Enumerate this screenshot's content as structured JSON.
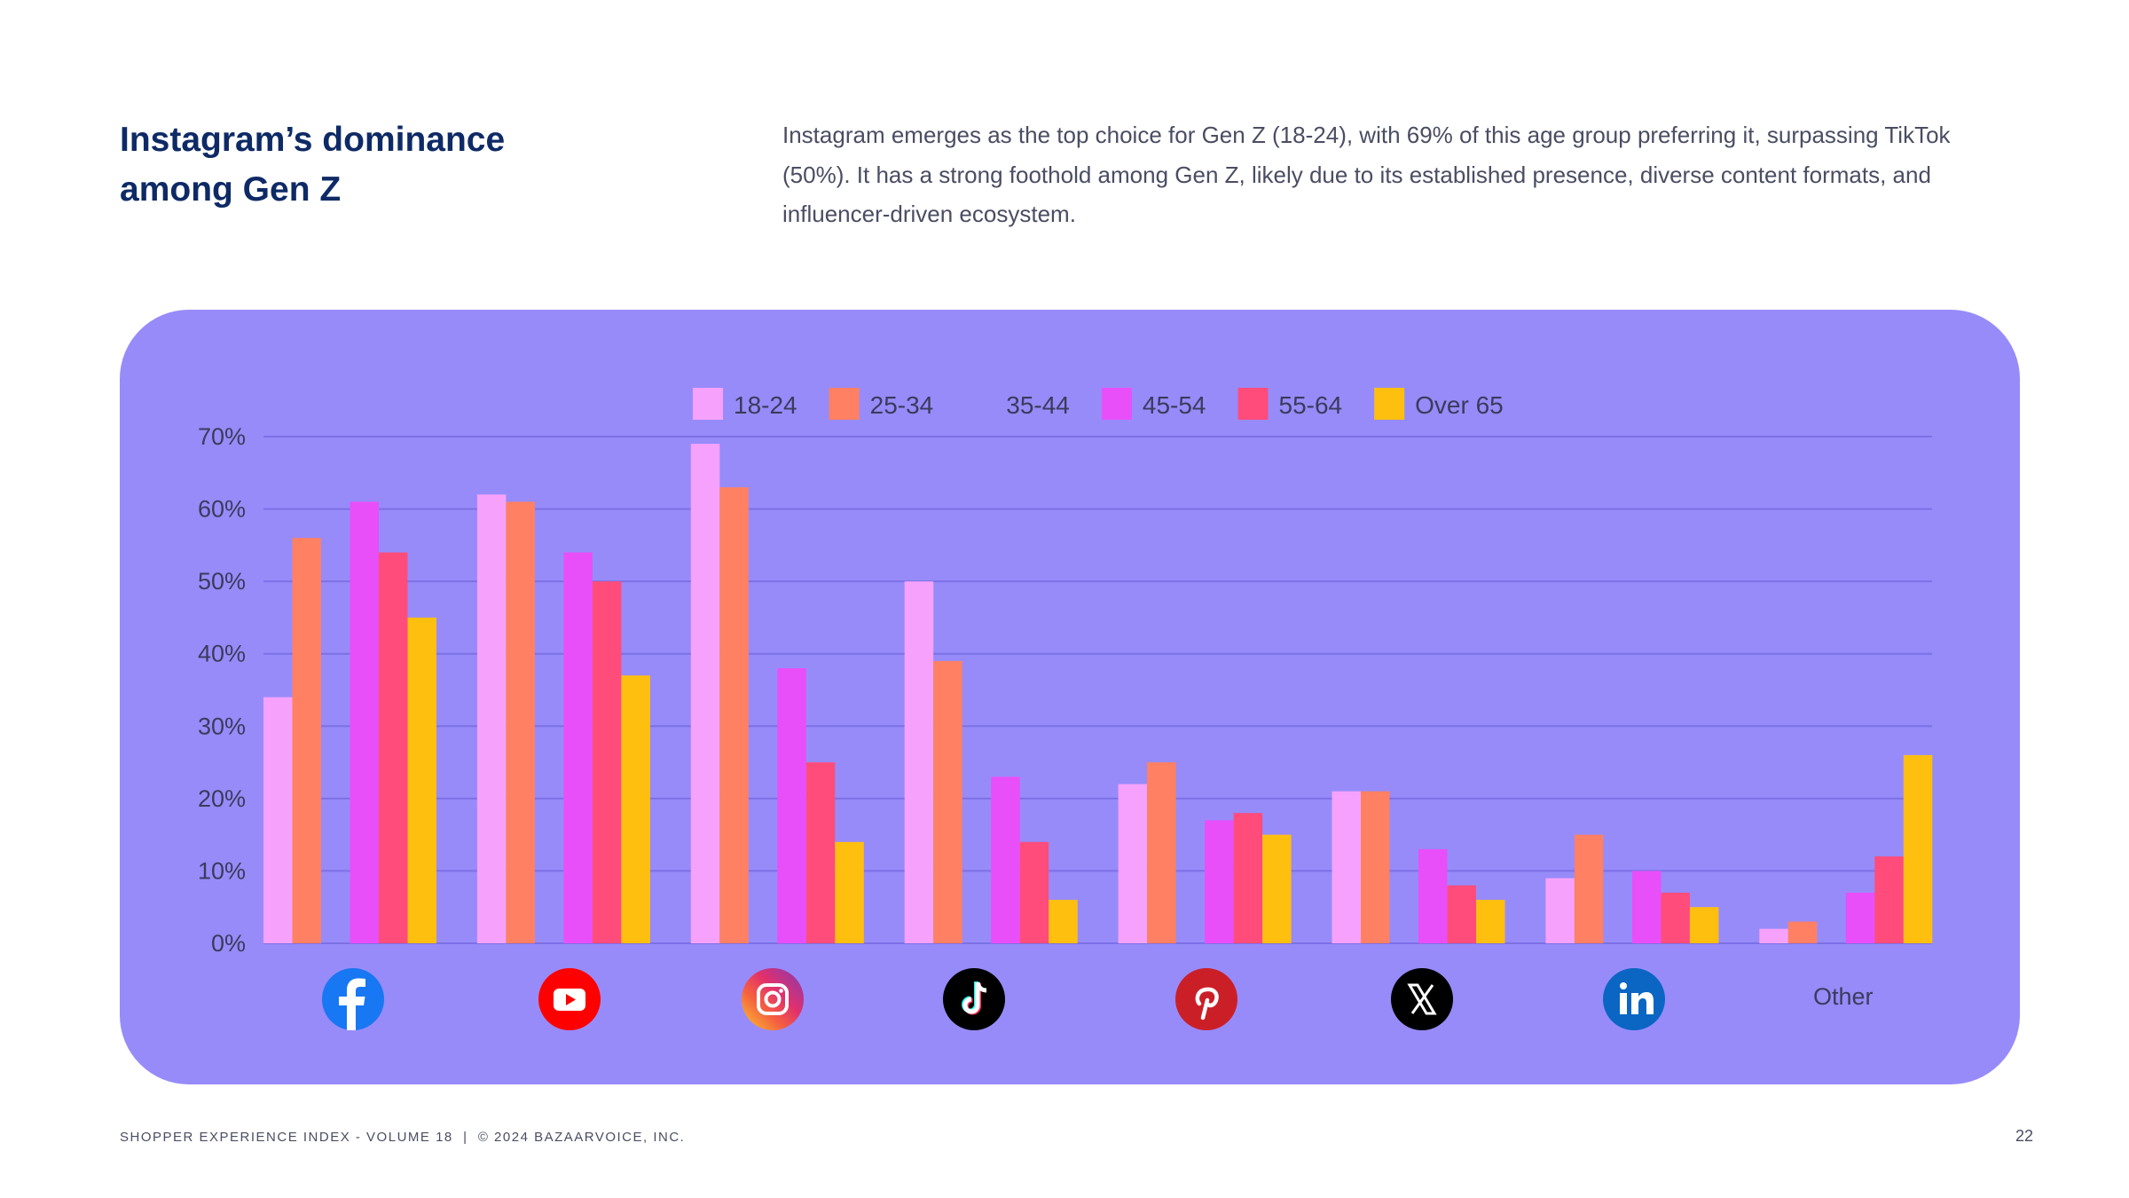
{
  "header": {
    "title_line1": "Instagram’s dominance",
    "title_line2": "among Gen Z",
    "description": "Instagram emerges as the top choice for Gen Z (18-24), with 69% of this age group preferring it, surpassing TikTok (50%). It has a strong foothold among Gen Z, likely due to its established presence, diverse content formats, and influencer-driven ecosystem."
  },
  "chart_data": {
    "type": "bar",
    "title": "",
    "xlabel": "",
    "ylabel": "",
    "ylim": [
      0,
      70
    ],
    "yticks": [
      "0%",
      "10%",
      "20%",
      "30%",
      "40%",
      "50%",
      "60%",
      "70%"
    ],
    "grid": true,
    "legend_position": "top",
    "categories": [
      "Facebook",
      "YouTube",
      "Instagram",
      "TikTok",
      "Pinterest",
      "X",
      "LinkedIn",
      "Other"
    ],
    "category_icons": [
      "facebook-icon",
      "youtube-icon",
      "instagram-icon",
      "tiktok-icon",
      "pinterest-icon",
      "x-icon",
      "linkedin-icon",
      null
    ],
    "category_text_label": "Other",
    "series": [
      {
        "name": "18-24",
        "color": "#f6a2fc",
        "values": [
          34,
          62,
          69,
          50,
          22,
          21,
          9,
          2
        ]
      },
      {
        "name": "25-34",
        "color": "#ff8063",
        "values": [
          56,
          61,
          63,
          39,
          25,
          21,
          15,
          3
        ]
      },
      {
        "name": "35-44",
        "color": "#978bfa",
        "values": [
          null,
          null,
          null,
          null,
          null,
          null,
          null,
          null
        ]
      },
      {
        "name": "45-54",
        "color": "#e94ff8",
        "values": [
          61,
          54,
          38,
          23,
          17,
          13,
          10,
          7
        ]
      },
      {
        "name": "55-64",
        "color": "#ff4c7b",
        "values": [
          54,
          50,
          25,
          14,
          18,
          8,
          7,
          12
        ]
      },
      {
        "name": "Over 65",
        "color": "#ffbf0f",
        "values": [
          45,
          37,
          14,
          6,
          15,
          6,
          5,
          26
        ]
      }
    ]
  },
  "colors": {
    "panel": "#978bfa",
    "title": "#0e2a66",
    "gridline": "#7c70e6"
  },
  "footer": {
    "text": "SHOPPER EXPERIENCE INDEX - VOLUME 18  |  © 2024 BAZAARVOICE, INC.",
    "page_number": "22"
  }
}
